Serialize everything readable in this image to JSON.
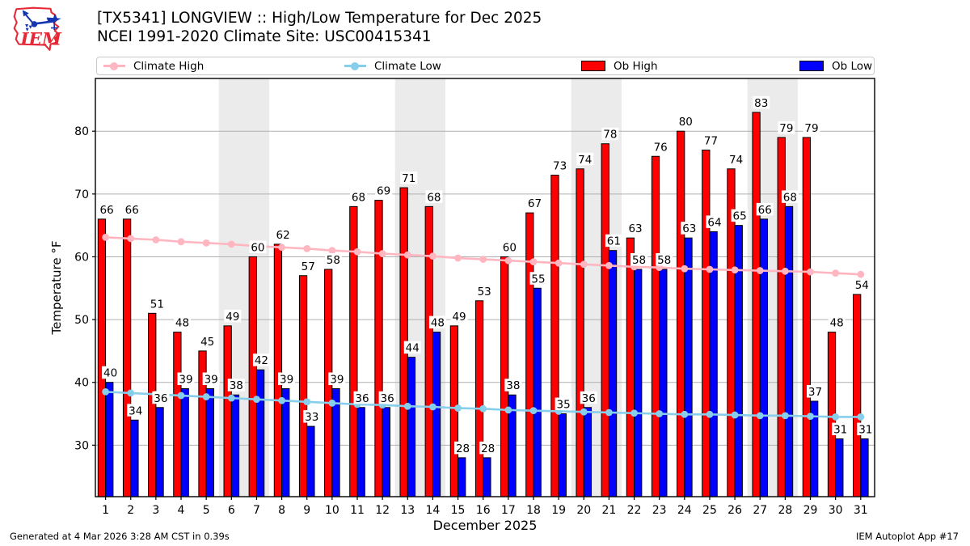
{
  "header": {
    "title_line1": "[TX5341] LONGVIEW :: High/Low Temperature for Dec 2025",
    "title_line2": "NCEI 1991-2020 Climate Site: USC00415341",
    "logo_text": "IEM"
  },
  "legend": {
    "items": [
      {
        "label": "Climate High",
        "marker": "line",
        "color": "#ffb6c1"
      },
      {
        "label": "Climate Low",
        "marker": "line",
        "color": "#87ceeb"
      },
      {
        "label": "Ob High",
        "marker": "patch",
        "color": "#ff0000"
      },
      {
        "label": "Ob Low",
        "marker": "patch",
        "color": "#0000ff"
      }
    ]
  },
  "chart_data": {
    "type": "bar",
    "title": "[TX5341] LONGVIEW :: High/Low Temperature for Dec 2025",
    "subtitle": "NCEI 1991-2020 Climate Site: USC00415341",
    "xlabel": "December 2025",
    "ylabel": "Temperature °F",
    "x": [
      1,
      2,
      3,
      4,
      5,
      6,
      7,
      8,
      9,
      10,
      11,
      12,
      13,
      14,
      15,
      16,
      17,
      18,
      19,
      20,
      21,
      22,
      23,
      24,
      25,
      26,
      27,
      28,
      29,
      30,
      31
    ],
    "series": [
      {
        "name": "Ob High",
        "type": "bar",
        "color": "#ff0000",
        "values": [
          66,
          66,
          51,
          48,
          45,
          49,
          60,
          62,
          57,
          58,
          68,
          69,
          71,
          68,
          49,
          53,
          60,
          67,
          73,
          74,
          78,
          63,
          76,
          80,
          77,
          74,
          83,
          79,
          79,
          48,
          54
        ]
      },
      {
        "name": "Ob Low",
        "type": "bar",
        "color": "#0000ff",
        "values": [
          40,
          34,
          36,
          39,
          39,
          38,
          42,
          39,
          33,
          39,
          36,
          36,
          44,
          48,
          28,
          28,
          38,
          55,
          35,
          36,
          61,
          58,
          58,
          63,
          64,
          65,
          66,
          68,
          37,
          31,
          31
        ]
      },
      {
        "name": "Climate High",
        "type": "line",
        "color": "#ffb6c1",
        "values": [
          63.1,
          62.9,
          62.7,
          62.4,
          62.2,
          62.0,
          61.7,
          61.5,
          61.3,
          61.0,
          60.8,
          60.5,
          60.3,
          60.1,
          59.8,
          59.6,
          59.4,
          59.2,
          59.0,
          58.8,
          58.6,
          58.4,
          58.3,
          58.1,
          58.0,
          57.9,
          57.8,
          57.7,
          57.6,
          57.4,
          57.2
        ]
      },
      {
        "name": "Climate Low",
        "type": "line",
        "color": "#87ceeb",
        "values": [
          38.5,
          38.3,
          38.1,
          37.9,
          37.7,
          37.5,
          37.3,
          37.1,
          36.9,
          36.7,
          36.5,
          36.4,
          36.2,
          36.1,
          35.9,
          35.8,
          35.6,
          35.5,
          35.4,
          35.3,
          35.2,
          35.1,
          35.0,
          34.9,
          34.9,
          34.8,
          34.7,
          34.7,
          34.6,
          34.5,
          34.5
        ]
      }
    ],
    "ylim": [
      21.8,
      88.4
    ],
    "yticks": [
      30,
      40,
      50,
      60,
      70,
      80
    ],
    "weekend_bands": [
      [
        5.5,
        7.5
      ],
      [
        12.5,
        14.5
      ],
      [
        19.5,
        21.5
      ],
      [
        26.5,
        28.5
      ]
    ],
    "band_color": "#ebebeb",
    "grid": true,
    "grid_color": "#b0b0b0",
    "bar_edge_color": "#000000",
    "value_labels": true,
    "legend_position": "top"
  },
  "footer": {
    "generated": "Generated at 4 Mar 2026 3:28 AM CST in 0.39s",
    "app": "IEM Autoplot App #17"
  }
}
